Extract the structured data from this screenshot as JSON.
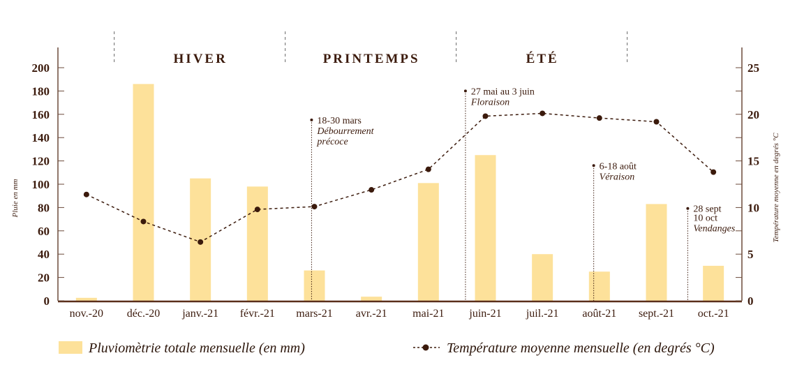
{
  "chart_data": {
    "type": "bar+line",
    "categories": [
      "nov.-20",
      "déc.-20",
      "janv.-21",
      "févr.-21",
      "mars-21",
      "avr.-21",
      "mai-21",
      "juin-21",
      "juil.-21",
      "août-21",
      "sept.-21",
      "oct.-21"
    ],
    "series": [
      {
        "name": "Pluviomètrie totale mensuelle (en mm)",
        "type": "bar",
        "axis": "left",
        "color": "#fde19a",
        "values": [
          2.5,
          186,
          105,
          98,
          26,
          3.5,
          101,
          125,
          40,
          25,
          83,
          30
        ]
      },
      {
        "name": "Température moyenne mensuelle (en degrés °C)",
        "type": "line",
        "axis": "right",
        "color": "#3b1a0c",
        "values": [
          11.4,
          8.5,
          6.3,
          9.8,
          10.1,
          11.9,
          14.1,
          19.8,
          20.1,
          19.6,
          19.2,
          13.8
        ]
      }
    ],
    "ylabel": "Pluie en mm",
    "ylim": [
      0,
      200
    ],
    "yticks": [
      "0",
      "20",
      "40",
      "60",
      "80",
      "100",
      "120",
      "140",
      "160",
      "180",
      "200"
    ],
    "y2label": "Température moyenne en degrés °C",
    "y2lim": [
      0,
      25
    ],
    "y2ticks": [
      "0",
      "5",
      "10",
      "15",
      "20",
      "25"
    ],
    "seasons": [
      {
        "label": "HIVER",
        "from": 0.5,
        "to": 3.5
      },
      {
        "label": "PRINTEMPS",
        "from": 3.5,
        "to": 6.5
      },
      {
        "label": "ÉTÉ",
        "from": 6.5,
        "to": 9.5
      }
    ],
    "annotations": [
      {
        "x": 3.95,
        "temp": 19.4,
        "date": "18-30 mars",
        "lines": [
          "Débourrement",
          "précoce"
        ]
      },
      {
        "x": 6.65,
        "temp": 22.5,
        "date": "27 mai au 3 juin",
        "lines": [
          "Floraison"
        ]
      },
      {
        "x": 8.9,
        "temp": 14.5,
        "date": "6-18 août",
        "lines": [
          "Véraison"
        ]
      },
      {
        "x": 10.55,
        "temp": 9.9,
        "date": "28 sept",
        "lines": [
          "10 oct",
          "Vendanges"
        ]
      }
    ],
    "legend": [
      "Pluviomètrie totale mensuelle (en mm)",
      "Température moyenne mensuelle (en degrés °C)"
    ],
    "legend_position": "bottom",
    "grid": false
  }
}
